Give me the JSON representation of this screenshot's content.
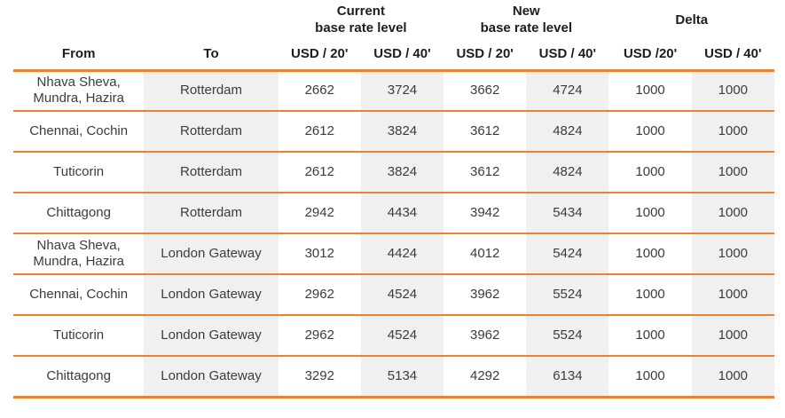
{
  "accent_color": "#ED8032",
  "shade_color": "#F0F0F0",
  "table": {
    "group_headers": [
      {
        "label": "Current\nbase rate level"
      },
      {
        "label": "New\nbase rate level"
      },
      {
        "label": "Delta"
      }
    ],
    "column_headers": [
      "From",
      "To",
      "USD / 20'",
      "USD / 40'",
      "USD / 20'",
      "USD / 40'",
      "USD /20'",
      "USD / 40'"
    ],
    "rows": [
      [
        "Nhava Sheva,\nMundra, Hazira",
        "Rotterdam",
        "2662",
        "3724",
        "3662",
        "4724",
        "1000",
        "1000"
      ],
      [
        "Chennai, Cochin",
        "Rotterdam",
        "2612",
        "3824",
        "3612",
        "4824",
        "1000",
        "1000"
      ],
      [
        "Tuticorin",
        "Rotterdam",
        "2612",
        "3824",
        "3612",
        "4824",
        "1000",
        "1000"
      ],
      [
        "Chittagong",
        "Rotterdam",
        "2942",
        "4434",
        "3942",
        "5434",
        "1000",
        "1000"
      ],
      [
        "Nhava Sheva,\nMundra, Hazira",
        "London Gateway",
        "3012",
        "4424",
        "4012",
        "5424",
        "1000",
        "1000"
      ],
      [
        "Chennai, Cochin",
        "London Gateway",
        "2962",
        "4524",
        "3962",
        "5524",
        "1000",
        "1000"
      ],
      [
        "Tuticorin",
        "London Gateway",
        "2962",
        "4524",
        "3962",
        "5524",
        "1000",
        "1000"
      ],
      [
        "Chittagong",
        "London Gateway",
        "3292",
        "5134",
        "4292",
        "6134",
        "1000",
        "1000"
      ]
    ]
  }
}
